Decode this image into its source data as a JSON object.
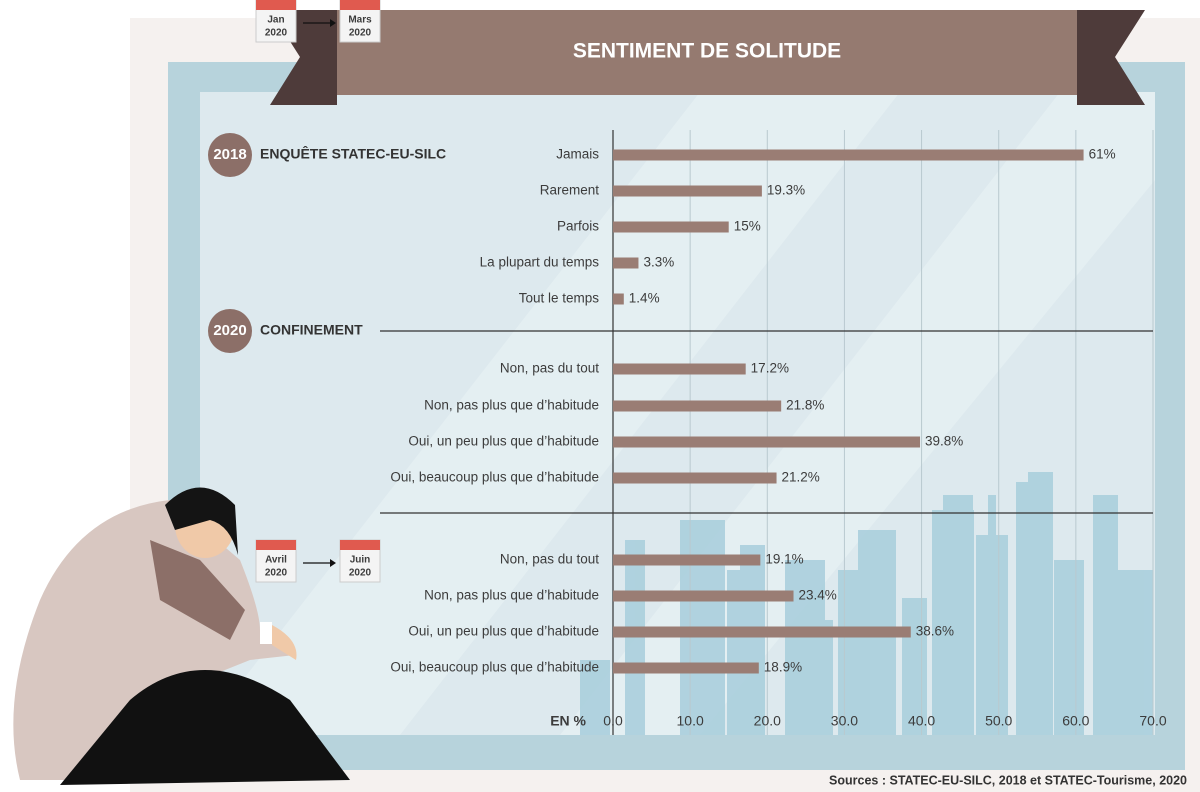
{
  "chart_data": {
    "type": "bar",
    "title": "SENTIMENT DE SOLITUDE",
    "color": "#9a7d74",
    "xlabel": "EN %",
    "xlim": [
      0,
      70
    ],
    "xticks": [
      {
        "value": 0,
        "label": "0.0"
      },
      {
        "value": 10,
        "label": "10.0"
      },
      {
        "value": 20,
        "label": "20.0"
      },
      {
        "value": 30,
        "label": "30.0"
      },
      {
        "value": 40,
        "label": "40.0"
      },
      {
        "value": 50,
        "label": "50.0"
      },
      {
        "value": 60,
        "label": "60.0"
      },
      {
        "value": 70,
        "label": "70.0"
      }
    ],
    "grid": true,
    "groups": [
      {
        "year": "2018",
        "heading": "ENQUÊTE STATEC-EU-SILC",
        "categories": [
          "Jamais",
          "Rarement",
          "Parfois",
          "La plupart du temps",
          "Tout le temps"
        ],
        "values": [
          61,
          19.3,
          15,
          3.3,
          1.4
        ],
        "value_labels": [
          "61%",
          "19.3%",
          "15%",
          "3.3%",
          "1.4%"
        ]
      },
      {
        "year": "2020",
        "heading": "CONFINEMENT",
        "period": [
          {
            "month": "Jan",
            "year": "2020"
          },
          {
            "month": "Mars",
            "year": "2020"
          }
        ],
        "categories": [
          "Non, pas du tout",
          "Non, pas plus que d’habitude",
          "Oui, un peu plus que d’habitude",
          "Oui, beaucoup plus que d’habitude"
        ],
        "values": [
          17.2,
          21.8,
          39.8,
          21.2
        ],
        "value_labels": [
          "17.2%",
          "21.8%",
          "39.8%",
          "21.2%"
        ]
      },
      {
        "period": [
          {
            "month": "Avril",
            "year": "2020"
          },
          {
            "month": "Juin",
            "year": "2020"
          }
        ],
        "categories": [
          "Non, pas du tout",
          "Non, pas plus que d’habitude",
          "Oui, un peu plus que d’habitude",
          "Oui, beaucoup plus que d’habitude"
        ],
        "values": [
          19.1,
          23.4,
          38.6,
          18.9
        ],
        "value_labels": [
          "19.1%",
          "23.4%",
          "38.6%",
          "18.9%"
        ]
      }
    ],
    "source": "Sources : STATEC-EU-SILC, 2018 et STATEC-Tourisme, 2020"
  }
}
